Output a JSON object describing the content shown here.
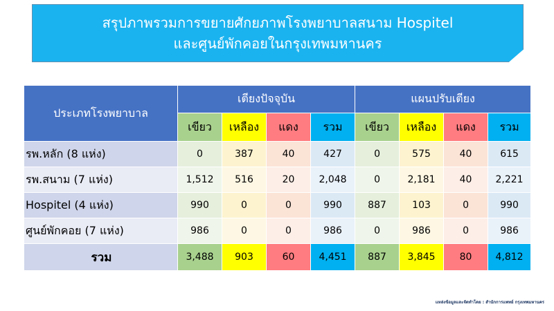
{
  "title": {
    "line1": "สรุปภาพรวมการขยายศักยภาพโรงพยาบาลสนาม Hospitel",
    "line2": "และศูนย์พักคอยในกรุงเทพมหานคร"
  },
  "table": {
    "row_header": "ประเภทโรงพยาบาล",
    "group_current": "เตียงปัจจุบัน",
    "group_plan": "แผนปรับเตียง",
    "subheaders": [
      "เขียว",
      "เหลือง",
      "แดง",
      "รวม",
      "เขียว",
      "เหลือง",
      "แดง",
      "รวม"
    ],
    "rows": [
      {
        "label": "รพ.หลัก (8 แห่ง)",
        "values": [
          "0",
          "387",
          "40",
          "427",
          "0",
          "575",
          "40",
          "615"
        ]
      },
      {
        "label": "รพ.สนาม (7 แห่ง)",
        "values": [
          "1,512",
          "516",
          "20",
          "2,048",
          "0",
          "2,181",
          "40",
          "2,221"
        ]
      },
      {
        "label": "Hospitel (4 แห่ง)",
        "values": [
          "990",
          "0",
          "0",
          "990",
          "887",
          "103",
          "0",
          "990"
        ]
      },
      {
        "label": "ศูนย์พักคอย (7 แห่ง)",
        "values": [
          "986",
          "0",
          "0",
          "986",
          "0",
          "986",
          "0",
          "986"
        ]
      }
    ],
    "total": {
      "label": "รวม",
      "values": [
        "3,488",
        "903",
        "60",
        "4,451",
        "887",
        "3,845",
        "80",
        "4,812"
      ]
    }
  },
  "source": "แหล่งข้อมูลและจัดทำโดย : สำนักการแพทย์ กรุงเทพมหานคร",
  "colors": {
    "title_bg": "#1ab3f0",
    "header_bg": "#4672c4",
    "green": "#a9d18e",
    "yellow": "#ffff00",
    "red": "#ff7c80",
    "blue": "#00b0f0"
  }
}
